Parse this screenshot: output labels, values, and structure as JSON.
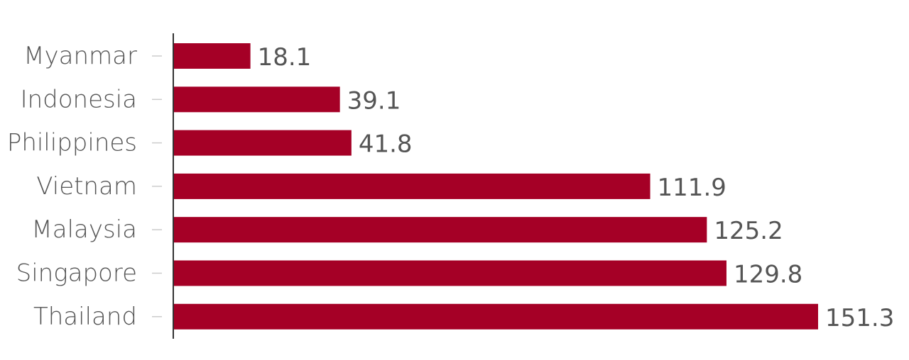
{
  "chart_data": {
    "type": "bar",
    "orientation": "horizontal",
    "title": "",
    "xlabel": "",
    "ylabel": "",
    "categories": [
      "Myanmar",
      "Indonesia",
      "Philippines",
      "Vietnam",
      "Malaysia",
      "Singapore",
      "Thailand"
    ],
    "values": [
      18.1,
      39.1,
      41.8,
      111.9,
      125.2,
      129.8,
      151.3
    ],
    "value_labels": [
      "18.1",
      "39.1",
      "41.8",
      "111.9",
      "125.2",
      "129.8",
      "151.3"
    ],
    "xlim": [
      0,
      151.3
    ],
    "grid": false,
    "legend": "none",
    "colors": {
      "bar": "#a50026",
      "text": "#555555",
      "axis": "#333333",
      "tick": "#cccccc"
    }
  }
}
